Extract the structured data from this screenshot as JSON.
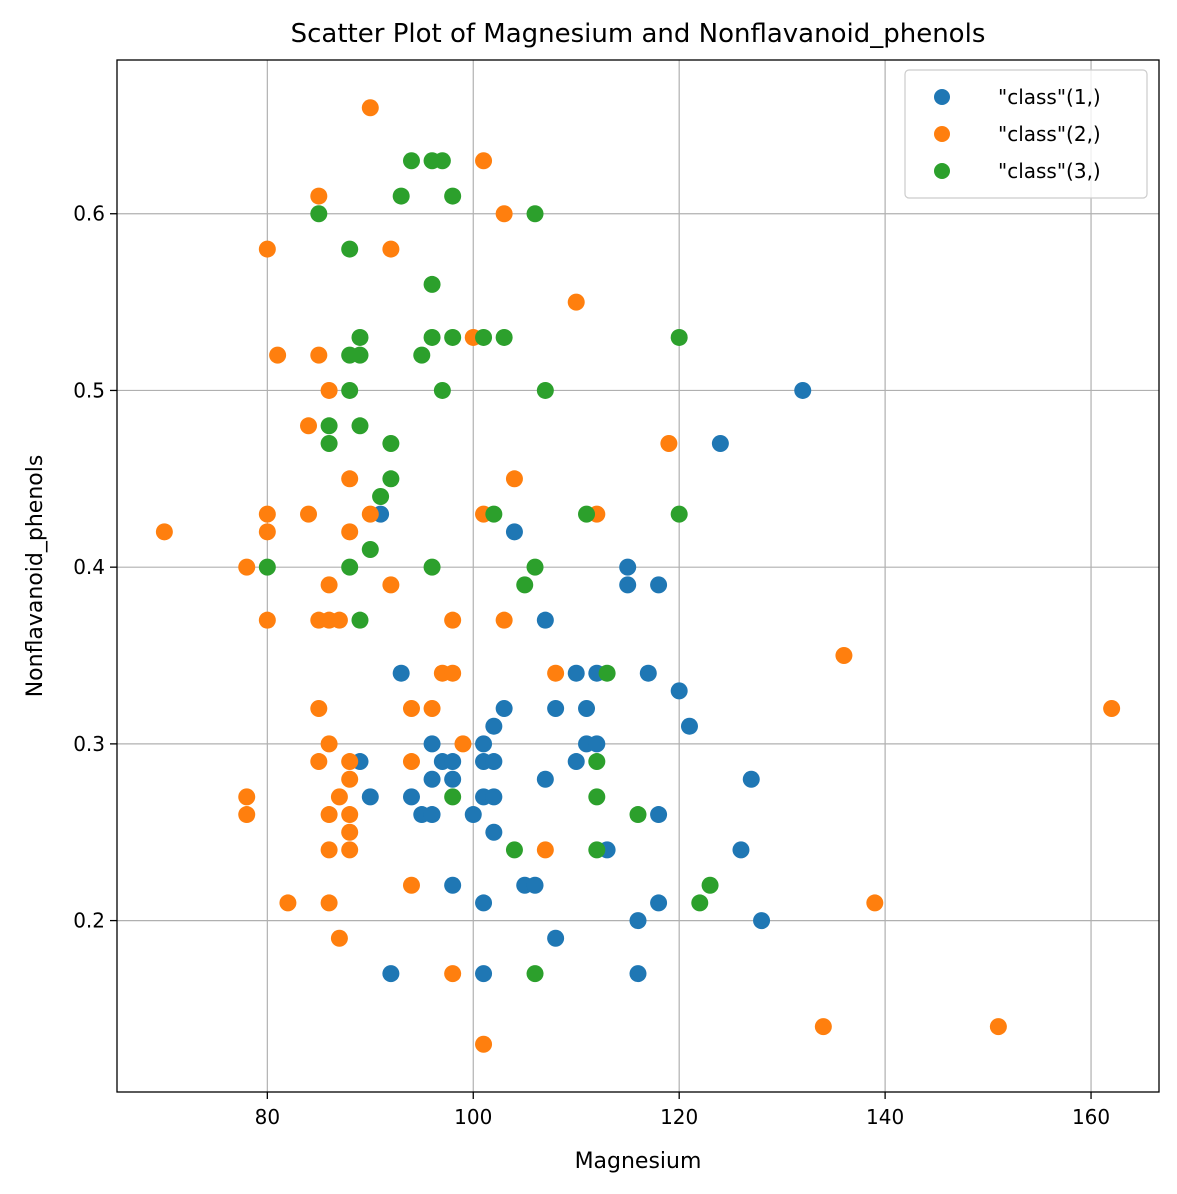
{
  "chart_data": {
    "type": "scatter",
    "title": "Scatter Plot of Magnesium and Nonflavanoid_phenols",
    "xlabel": "Magnesium",
    "ylabel": "Nonflavanoid_phenols",
    "xlim": [
      65.4,
      166.6
    ],
    "ylim": [
      0.103,
      0.687
    ],
    "xticks": [
      80,
      100,
      120,
      140,
      160
    ],
    "yticks": [
      0.2,
      0.3,
      0.4,
      0.5,
      0.6
    ],
    "xtick_labels": [
      "80",
      "100",
      "120",
      "140",
      "160"
    ],
    "ytick_labels": [
      "0.2",
      "0.3",
      "0.4",
      "0.5",
      "0.6"
    ],
    "grid": true,
    "legend_position": "top-right",
    "series": [
      {
        "name": "\"class\"(1,)",
        "color": "#1f77b4",
        "points": [
          [
            132,
            0.5
          ],
          [
            124,
            0.47
          ],
          [
            91,
            0.43
          ],
          [
            104,
            0.42
          ],
          [
            115,
            0.4
          ],
          [
            115,
            0.39
          ],
          [
            118,
            0.39
          ],
          [
            107,
            0.37
          ],
          [
            93,
            0.34
          ],
          [
            110,
            0.34
          ],
          [
            112,
            0.34
          ],
          [
            117,
            0.34
          ],
          [
            120,
            0.33
          ],
          [
            103,
            0.32
          ],
          [
            108,
            0.32
          ],
          [
            111,
            0.32
          ],
          [
            102,
            0.31
          ],
          [
            121,
            0.31
          ],
          [
            96,
            0.3
          ],
          [
            101,
            0.3
          ],
          [
            111,
            0.3
          ],
          [
            112,
            0.3
          ],
          [
            89,
            0.29
          ],
          [
            97,
            0.29
          ],
          [
            98,
            0.29
          ],
          [
            101,
            0.29
          ],
          [
            102,
            0.29
          ],
          [
            110,
            0.29
          ],
          [
            96,
            0.28
          ],
          [
            98,
            0.28
          ],
          [
            107,
            0.28
          ],
          [
            127,
            0.28
          ],
          [
            90,
            0.27
          ],
          [
            94,
            0.27
          ],
          [
            101,
            0.27
          ],
          [
            102,
            0.27
          ],
          [
            95,
            0.26
          ],
          [
            96,
            0.26
          ],
          [
            100,
            0.26
          ],
          [
            118,
            0.26
          ],
          [
            102,
            0.25
          ],
          [
            113,
            0.24
          ],
          [
            126,
            0.24
          ],
          [
            98,
            0.22
          ],
          [
            105,
            0.22
          ],
          [
            106,
            0.22
          ],
          [
            101,
            0.21
          ],
          [
            118,
            0.21
          ],
          [
            116,
            0.2
          ],
          [
            128,
            0.2
          ],
          [
            108,
            0.19
          ],
          [
            92,
            0.17
          ],
          [
            101,
            0.17
          ],
          [
            116,
            0.17
          ]
        ]
      },
      {
        "name": "\"class\"(2,)",
        "color": "#ff7f0e",
        "points": [
          [
            90,
            0.66
          ],
          [
            101,
            0.63
          ],
          [
            85,
            0.61
          ],
          [
            103,
            0.6
          ],
          [
            80,
            0.58
          ],
          [
            92,
            0.58
          ],
          [
            110,
            0.55
          ],
          [
            100,
            0.53
          ],
          [
            81,
            0.52
          ],
          [
            85,
            0.52
          ],
          [
            86,
            0.5
          ],
          [
            84,
            0.48
          ],
          [
            119,
            0.47
          ],
          [
            88,
            0.45
          ],
          [
            104,
            0.45
          ],
          [
            80,
            0.43
          ],
          [
            84,
            0.43
          ],
          [
            90,
            0.43
          ],
          [
            101,
            0.43
          ],
          [
            112,
            0.43
          ],
          [
            70,
            0.42
          ],
          [
            80,
            0.42
          ],
          [
            88,
            0.42
          ],
          [
            78,
            0.4
          ],
          [
            86,
            0.39
          ],
          [
            92,
            0.39
          ],
          [
            80,
            0.37
          ],
          [
            85,
            0.37
          ],
          [
            86,
            0.37
          ],
          [
            87,
            0.37
          ],
          [
            98,
            0.37
          ],
          [
            103,
            0.37
          ],
          [
            136,
            0.35
          ],
          [
            97,
            0.34
          ],
          [
            98,
            0.34
          ],
          [
            108,
            0.34
          ],
          [
            85,
            0.32
          ],
          [
            94,
            0.32
          ],
          [
            96,
            0.32
          ],
          [
            162,
            0.32
          ],
          [
            86,
            0.3
          ],
          [
            99,
            0.3
          ],
          [
            85,
            0.29
          ],
          [
            88,
            0.29
          ],
          [
            94,
            0.29
          ],
          [
            88,
            0.28
          ],
          [
            78,
            0.27
          ],
          [
            87,
            0.27
          ],
          [
            78,
            0.26
          ],
          [
            86,
            0.26
          ],
          [
            88,
            0.26
          ],
          [
            88,
            0.25
          ],
          [
            86,
            0.24
          ],
          [
            88,
            0.24
          ],
          [
            107,
            0.24
          ],
          [
            94,
            0.22
          ],
          [
            82,
            0.21
          ],
          [
            86,
            0.21
          ],
          [
            139,
            0.21
          ],
          [
            87,
            0.19
          ],
          [
            98,
            0.17
          ],
          [
            134,
            0.14
          ],
          [
            151,
            0.14
          ],
          [
            101,
            0.13
          ]
        ]
      },
      {
        "name": "\"class\"(3,)",
        "color": "#2ca02c",
        "points": [
          [
            94,
            0.63
          ],
          [
            96,
            0.63
          ],
          [
            97,
            0.63
          ],
          [
            93,
            0.61
          ],
          [
            98,
            0.61
          ],
          [
            85,
            0.6
          ],
          [
            106,
            0.6
          ],
          [
            88,
            0.58
          ],
          [
            96,
            0.56
          ],
          [
            89,
            0.53
          ],
          [
            96,
            0.53
          ],
          [
            98,
            0.53
          ],
          [
            101,
            0.53
          ],
          [
            103,
            0.53
          ],
          [
            120,
            0.53
          ],
          [
            88,
            0.52
          ],
          [
            89,
            0.52
          ],
          [
            95,
            0.52
          ],
          [
            88,
            0.5
          ],
          [
            97,
            0.5
          ],
          [
            107,
            0.5
          ],
          [
            86,
            0.48
          ],
          [
            89,
            0.48
          ],
          [
            86,
            0.47
          ],
          [
            92,
            0.47
          ],
          [
            92,
            0.45
          ],
          [
            91,
            0.44
          ],
          [
            102,
            0.43
          ],
          [
            111,
            0.43
          ],
          [
            120,
            0.43
          ],
          [
            90,
            0.41
          ],
          [
            80,
            0.4
          ],
          [
            88,
            0.4
          ],
          [
            96,
            0.4
          ],
          [
            106,
            0.4
          ],
          [
            105,
            0.39
          ],
          [
            89,
            0.37
          ],
          [
            113,
            0.34
          ],
          [
            112,
            0.29
          ],
          [
            98,
            0.27
          ],
          [
            112,
            0.27
          ],
          [
            116,
            0.26
          ],
          [
            104,
            0.24
          ],
          [
            112,
            0.24
          ],
          [
            123,
            0.22
          ],
          [
            122,
            0.21
          ],
          [
            106,
            0.17
          ]
        ]
      }
    ]
  }
}
